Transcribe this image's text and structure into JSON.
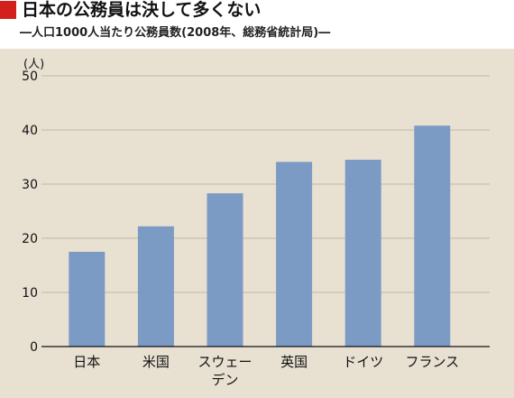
{
  "header": {
    "title": "日本の公務員は決して多くない",
    "subtitle": "―人口1000人当たり公務員数(2008年、総務省統計局)―"
  },
  "colors": {
    "accent": "#d4201c",
    "panel_background": "#e8e1d2",
    "bar": "#7b9ac4",
    "grid": "#bfb7a6"
  },
  "chart_data": {
    "type": "bar",
    "title": "日本の公務員は決して多くない",
    "subtitle": "―人口1000人当たり公務員数(2008年、総務省統計局)―",
    "ylabel": "(人)",
    "xlabel": "",
    "ylim": [
      0,
      50
    ],
    "yticks": [
      0,
      10,
      20,
      30,
      40,
      50
    ],
    "grid": true,
    "categories": [
      "日本",
      "米国",
      "スウェーデン",
      "英国",
      "ドイツ",
      "フランス"
    ],
    "category_label_lines": [
      [
        "日本"
      ],
      [
        "米国"
      ],
      [
        "スウェー",
        "デン"
      ],
      [
        "英国"
      ],
      [
        "ドイツ"
      ],
      [
        "フランス"
      ]
    ],
    "values": [
      17.5,
      22.2,
      28.3,
      34.1,
      34.5,
      40.8
    ]
  }
}
